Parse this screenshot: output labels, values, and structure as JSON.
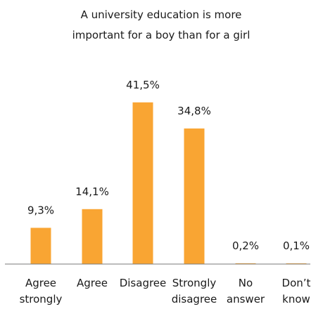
{
  "chart_data": {
    "type": "bar",
    "title": [
      "A university education is more",
      "important for a boy than for a girl"
    ],
    "categories": [
      [
        "Agree",
        "strongly"
      ],
      [
        "Agree"
      ],
      [
        "Disagree"
      ],
      [
        "Strongly",
        "disagree"
      ],
      [
        "No",
        "answer"
      ],
      [
        "Don’t",
        "know"
      ]
    ],
    "values": [
      9.3,
      14.1,
      41.5,
      34.8,
      0.2,
      0.1
    ],
    "value_labels": [
      "9,3%",
      "14,1%",
      "41,5%",
      "34,8%",
      "0,2%",
      "0,1%"
    ],
    "xlabel": "",
    "ylabel": "",
    "ylim": [
      0,
      42
    ],
    "grid": false,
    "legend": "none",
    "bar_color": "#F9A533",
    "axis_color": "#7a7a7a"
  }
}
